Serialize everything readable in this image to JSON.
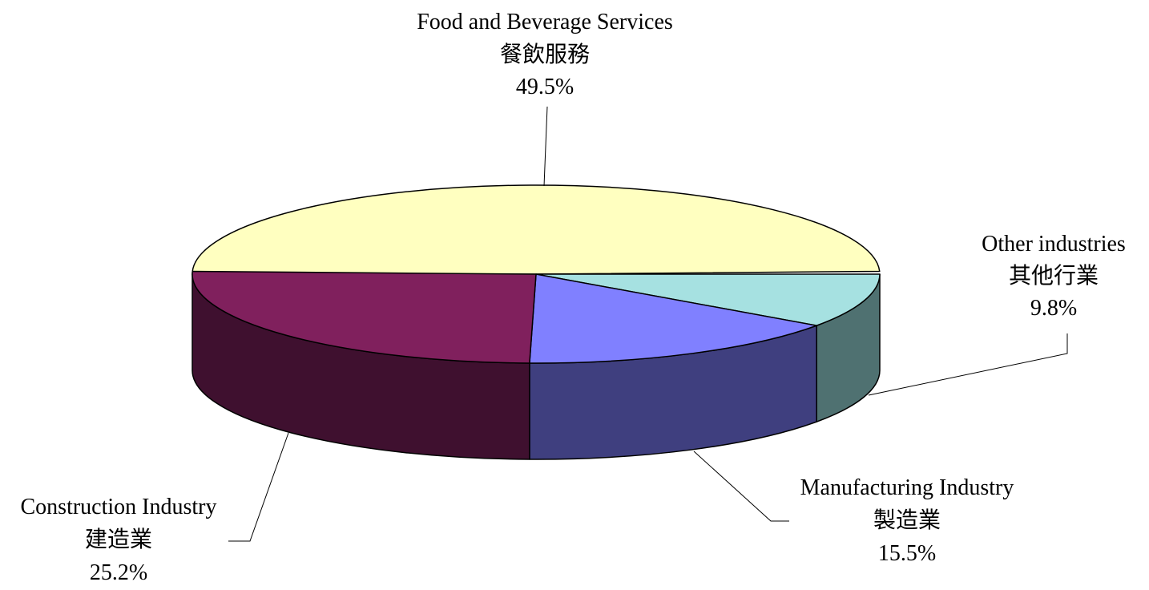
{
  "chart_data": {
    "type": "pie",
    "style": "3d",
    "slices": [
      {
        "label_en": "Food and Beverage Services",
        "label_zh": "餐飲服務",
        "value": 49.5,
        "value_label": "49.5%",
        "top_color": "#FFFFC0",
        "side_color": "#FFFFC0"
      },
      {
        "label_en": "Other industries",
        "label_zh": "其他行業",
        "value": 9.8,
        "value_label": "9.8%",
        "top_color": "#A6E1E1",
        "side_color": "#4F7171"
      },
      {
        "label_en": "Manufacturing Industry",
        "label_zh": "製造業",
        "value": 15.5,
        "value_label": "15.5%",
        "top_color": "#8080FF",
        "side_color": "#3F3F7F"
      },
      {
        "label_en": "Construction Industry",
        "label_zh": "建造業",
        "value": 25.2,
        "value_label": "25.2%",
        "top_color": "#80205D",
        "side_color": "#3F102F"
      }
    ]
  }
}
